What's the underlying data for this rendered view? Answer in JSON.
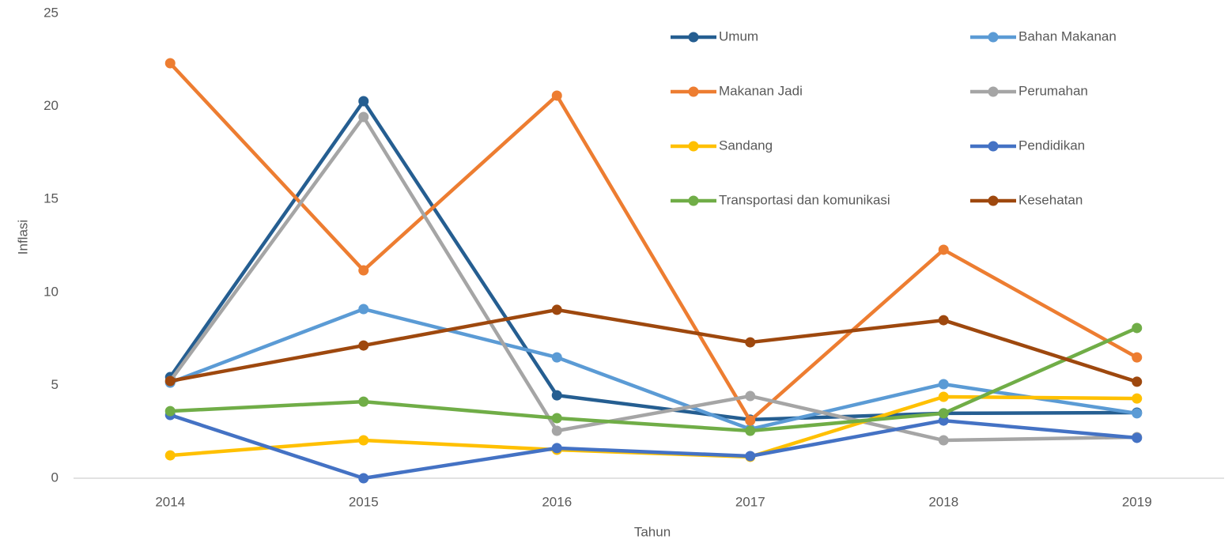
{
  "chart_data": {
    "type": "line",
    "x_label": "Tahun",
    "y_label": "Inflasi",
    "categories": [
      "2014",
      "2015",
      "2016",
      "2017",
      "2018",
      "2019"
    ],
    "ylim": [
      0,
      25
    ],
    "yticks": [
      0,
      5,
      10,
      15,
      20,
      25
    ],
    "grid": false,
    "legend": "top right",
    "series": [
      {
        "name": "Umum",
        "color": "#255e91",
        "values": [
          5.44,
          20.28,
          4.46,
          3.15,
          3.49,
          3.53
        ]
      },
      {
        "name": "Bahan Makanan",
        "color": "#5b9bd5",
        "values": [
          5.14,
          9.1,
          6.5,
          2.64,
          5.06,
          3.49
        ]
      },
      {
        "name": "Makanan Jadi",
        "color": "#ed7d31",
        "values": [
          22.32,
          11.18,
          20.58,
          3.1,
          12.29,
          6.5
        ]
      },
      {
        "name": "Perumahan",
        "color": "#a5a5a5",
        "values": [
          5.23,
          19.43,
          2.55,
          4.42,
          2.04,
          2.21
        ]
      },
      {
        "name": "Sandang",
        "color": "#ffc000",
        "values": [
          1.23,
          2.04,
          1.53,
          1.15,
          4.38,
          4.29
        ]
      },
      {
        "name": "Pendidikan",
        "color": "#4472c4",
        "values": [
          3.4,
          0,
          1.62,
          1.19,
          3.1,
          2.17
        ]
      },
      {
        "name": "Transportasi dan komunikasi",
        "color": "#70ad47",
        "values": [
          3.61,
          4.12,
          3.23,
          2.55,
          3.49,
          8.08
        ]
      },
      {
        "name": "Kesehatan",
        "color": "#9e480e",
        "values": [
          5.23,
          7.14,
          9.06,
          7.31,
          8.5,
          5.19
        ]
      }
    ]
  }
}
